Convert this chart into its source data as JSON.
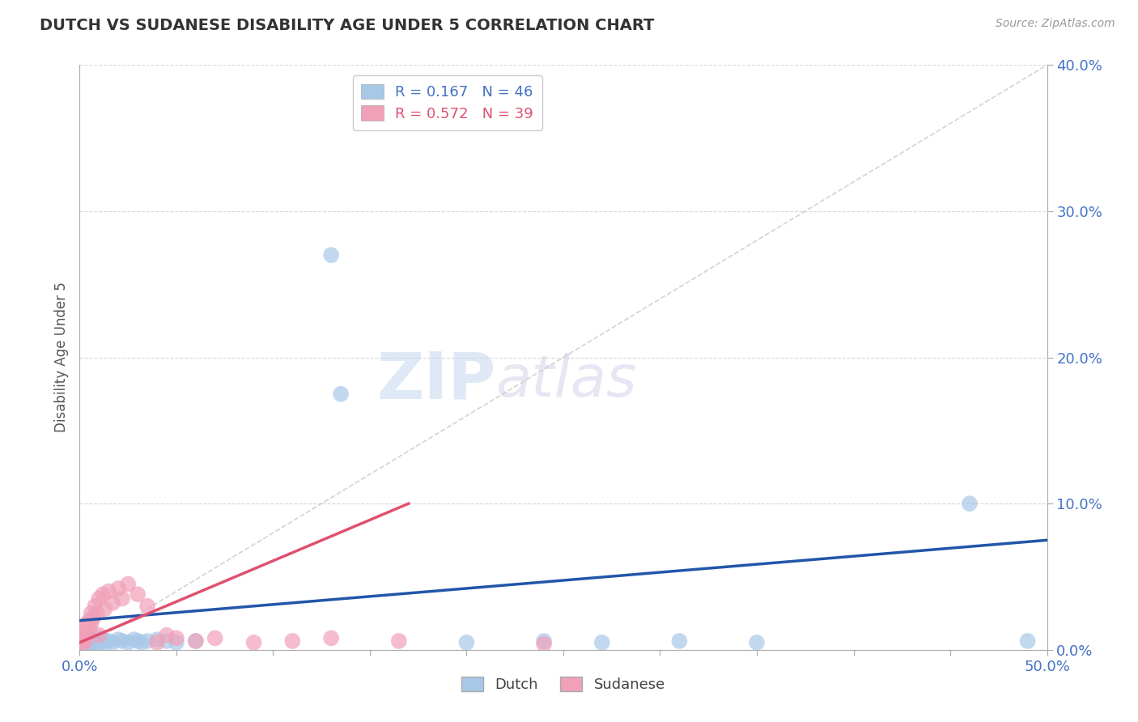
{
  "title": "DUTCH VS SUDANESE DISABILITY AGE UNDER 5 CORRELATION CHART",
  "source": "Source: ZipAtlas.com",
  "ylabel": "Disability Age Under 5",
  "xlim": [
    0.0,
    0.5
  ],
  "ylim": [
    0.0,
    0.4
  ],
  "xticks": [
    0.0,
    0.05,
    0.1,
    0.15,
    0.2,
    0.25,
    0.3,
    0.35,
    0.4,
    0.45,
    0.5
  ],
  "yticks": [
    0.0,
    0.1,
    0.2,
    0.3,
    0.4
  ],
  "ytick_labels": [
    "0.0%",
    "10.0%",
    "20.0%",
    "30.0%",
    "40.0%"
  ],
  "dutch_color": "#a8c8e8",
  "sudanese_color": "#f0a0b8",
  "dutch_line_color": "#2255aa",
  "sudanese_line_color": "#e05070",
  "ref_line_color": "#c8c8c8",
  "legend_R_dutch": "R = 0.167",
  "legend_N_dutch": "N = 46",
  "legend_R_sudanese": "R = 0.572",
  "legend_N_sudanese": "N = 39",
  "dutch_scatter_x": [
    0.001,
    0.001,
    0.002,
    0.002,
    0.003,
    0.003,
    0.003,
    0.004,
    0.004,
    0.004,
    0.005,
    0.005,
    0.005,
    0.006,
    0.006,
    0.007,
    0.007,
    0.008,
    0.008,
    0.009,
    0.01,
    0.01,
    0.012,
    0.013,
    0.015,
    0.017,
    0.02,
    0.022,
    0.025,
    0.028,
    0.03,
    0.032,
    0.035,
    0.04,
    0.045,
    0.05,
    0.06,
    0.13,
    0.135,
    0.2,
    0.24,
    0.27,
    0.31,
    0.35,
    0.46,
    0.49
  ],
  "dutch_scatter_y": [
    0.01,
    0.005,
    0.008,
    0.003,
    0.007,
    0.004,
    0.006,
    0.005,
    0.008,
    0.003,
    0.006,
    0.004,
    0.009,
    0.005,
    0.007,
    0.006,
    0.004,
    0.007,
    0.005,
    0.006,
    0.008,
    0.004,
    0.007,
    0.005,
    0.006,
    0.005,
    0.007,
    0.006,
    0.005,
    0.007,
    0.006,
    0.005,
    0.006,
    0.007,
    0.006,
    0.005,
    0.006,
    0.27,
    0.175,
    0.005,
    0.006,
    0.005,
    0.006,
    0.005,
    0.1,
    0.006
  ],
  "sudanese_scatter_x": [
    0.001,
    0.001,
    0.001,
    0.002,
    0.002,
    0.002,
    0.003,
    0.003,
    0.003,
    0.004,
    0.004,
    0.005,
    0.005,
    0.006,
    0.006,
    0.007,
    0.008,
    0.009,
    0.01,
    0.01,
    0.012,
    0.013,
    0.015,
    0.017,
    0.02,
    0.022,
    0.025,
    0.03,
    0.035,
    0.04,
    0.045,
    0.05,
    0.06,
    0.07,
    0.09,
    0.11,
    0.13,
    0.165,
    0.24
  ],
  "sudanese_scatter_y": [
    0.01,
    0.007,
    0.004,
    0.012,
    0.008,
    0.005,
    0.015,
    0.01,
    0.006,
    0.018,
    0.012,
    0.02,
    0.015,
    0.025,
    0.018,
    0.022,
    0.03,
    0.025,
    0.035,
    0.01,
    0.038,
    0.028,
    0.04,
    0.032,
    0.042,
    0.035,
    0.045,
    0.038,
    0.03,
    0.005,
    0.01,
    0.008,
    0.006,
    0.008,
    0.005,
    0.006,
    0.008,
    0.006,
    0.004
  ],
  "watermark_zip": "ZIP",
  "watermark_atlas": "atlas",
  "background_color": "#ffffff",
  "grid_color": "#d8d8d8"
}
